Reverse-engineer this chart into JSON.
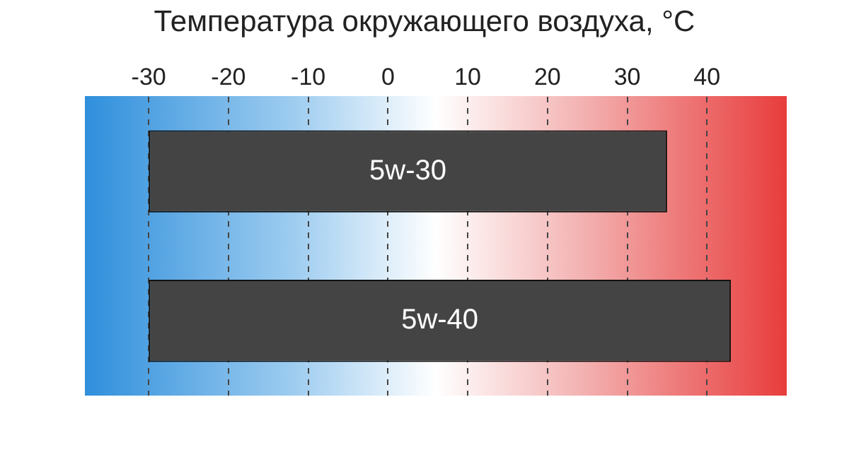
{
  "chart_data": {
    "type": "bar",
    "orientation": "horizontal",
    "title": "Температура окружающего воздуха, °С",
    "categories": [
      "5w-30",
      "5w-40"
    ],
    "base": [
      -30,
      -30
    ],
    "values": [
      65,
      73
    ],
    "color": "#444444",
    "xlim": [
      -38,
      50
    ],
    "xticks": [
      -30,
      -20,
      -10,
      0,
      10,
      20,
      30,
      40
    ],
    "grid": "x",
    "tick_labels": "x",
    "legend": false
  }
}
